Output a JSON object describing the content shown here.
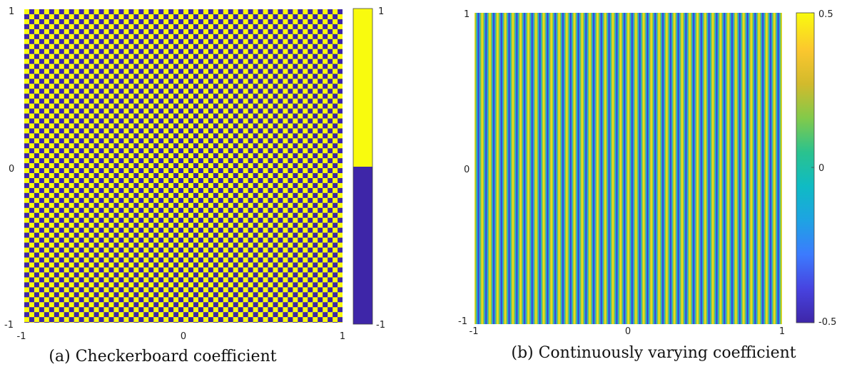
{
  "colors": {
    "yellow": "#f9fb0e",
    "blue": "#3e26a8",
    "parula": [
      "#3e26a8",
      "#4743e0",
      "#3c7bfe",
      "#1ea3e3",
      "#0fbbc4",
      "#2ac28e",
      "#82ca4a",
      "#d2ba2c",
      "#fbc72e",
      "#f9fb0e"
    ]
  },
  "captions": {
    "a": "(a) Checkerboard coefficient",
    "b": "(b) Continuously varying coefficient"
  },
  "chart_data": [
    {
      "type": "heatmap",
      "pattern": "checkerboard",
      "cells_per_side": 64,
      "values": [
        -1,
        1
      ],
      "xlim": [
        -1,
        1
      ],
      "ylim": [
        -1,
        1
      ],
      "xticks": [
        "-1",
        "0",
        "1"
      ],
      "yticks": [
        "-1",
        "0",
        "1"
      ],
      "colorbar": {
        "ticks": [
          "1",
          "-1"
        ],
        "range": [
          -1,
          1
        ]
      }
    },
    {
      "type": "heatmap",
      "pattern": "vertical-stripes",
      "periods": 40,
      "xlim": [
        -1,
        1
      ],
      "ylim": [
        -1,
        1
      ],
      "xticks": [
        "-1",
        "0",
        "1"
      ],
      "yticks": [
        "-1",
        "0",
        "1"
      ],
      "colorbar": {
        "ticks": [
          "0.5",
          "0",
          "-0.5"
        ],
        "range": [
          -0.5,
          0.5
        ]
      }
    }
  ]
}
